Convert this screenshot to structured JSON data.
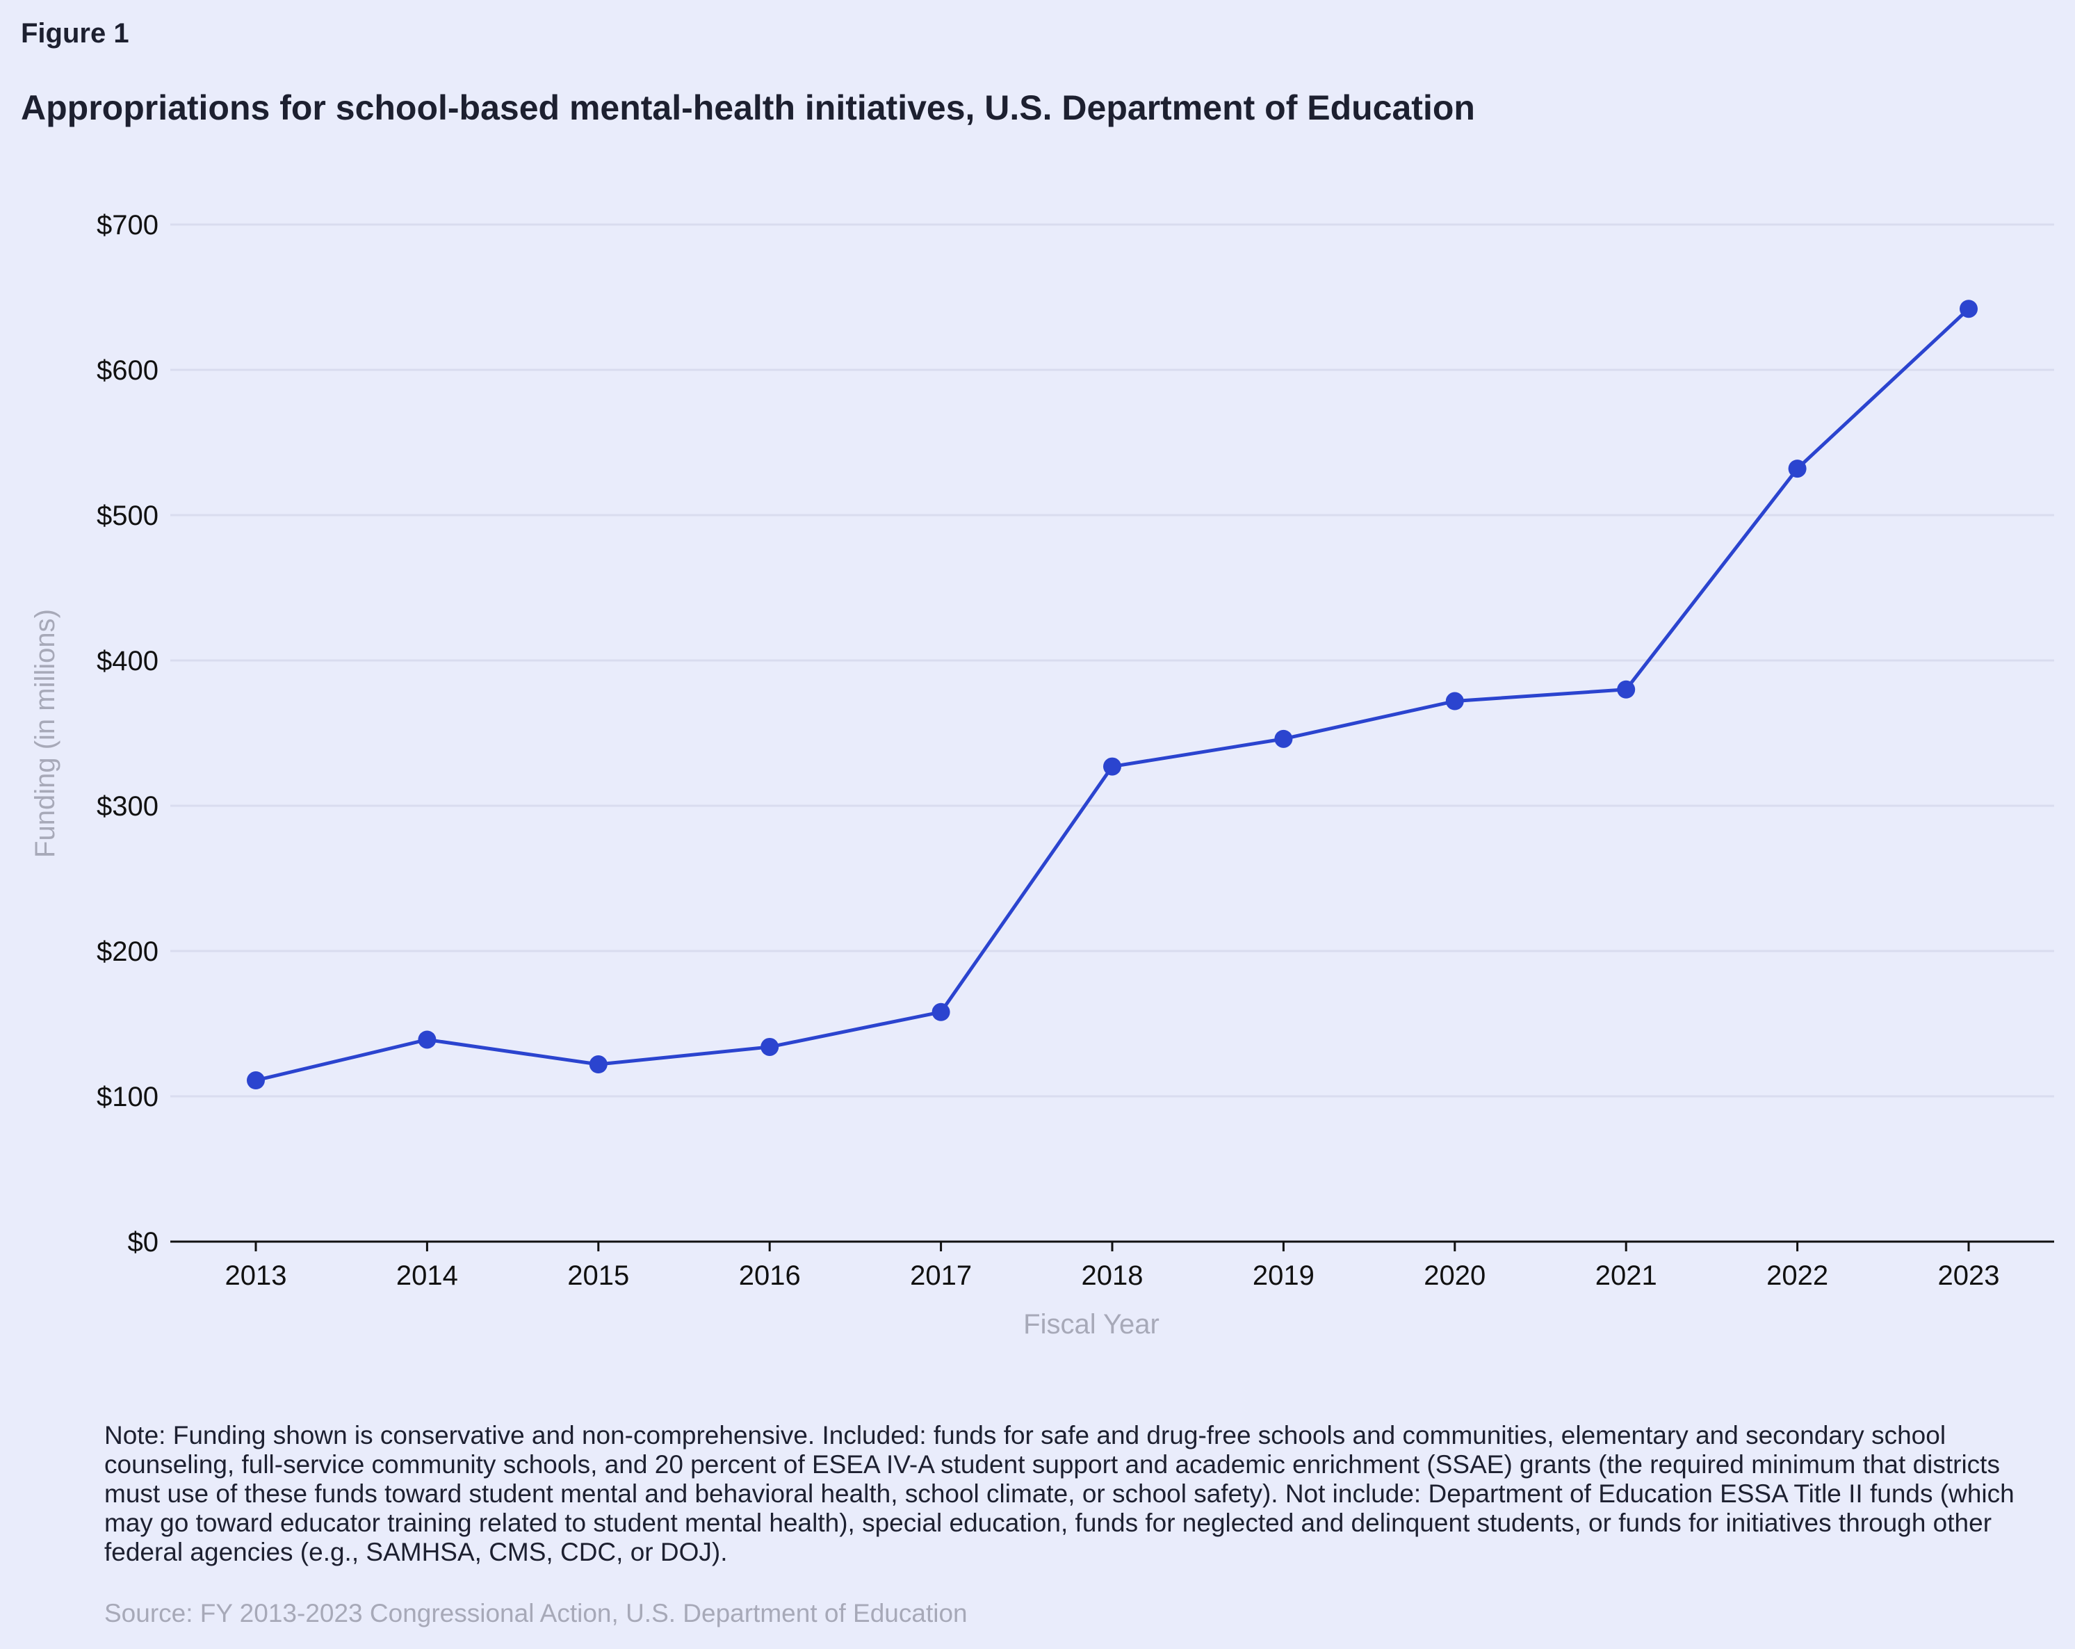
{
  "figure": {
    "label": "Figure 1",
    "title": "Appropriations for school-based mental-health initiatives, U.S. Department of Education",
    "note": "Note: Funding shown is conservative and non-comprehensive. Included: funds for safe and drug-free schools and communities, elementary and secondary school counseling, full-service community schools, and 20 percent of ESEA IV-A student support and academic enrichment (SSAE) grants (the required minimum that districts must use of these funds toward student mental and behavioral health, school climate, or school safety). Not include: Department of Education ESSA Title II funds (which may go toward educator training related to student mental health), special education, funds for neglected and delinquent students, or funds for initiatives through other federal agencies (e.g., SAMHSA, CMS, CDC, or DOJ).",
    "source": "Source: FY 2013-2023 Congressional Action, U.S. Department of Education"
  },
  "chart_data": {
    "type": "line",
    "title": "Appropriations for school-based mental-health initiatives, U.S. Department of Education",
    "xlabel": "Fiscal Year",
    "ylabel": "Funding (in millions)",
    "x": [
      "2013",
      "2014",
      "2015",
      "2016",
      "2017",
      "2018",
      "2019",
      "2020",
      "2021",
      "2022",
      "2023"
    ],
    "series": [
      {
        "values": [
          111,
          139,
          122,
          134,
          158,
          327,
          346,
          372,
          380,
          532,
          642
        ]
      }
    ],
    "ylim": [
      0,
      700
    ],
    "yticks": [
      0,
      100,
      200,
      300,
      400,
      500,
      600,
      700
    ],
    "ytick_labels": [
      "$0",
      "$100",
      "$200",
      "$300",
      "$400",
      "$500",
      "$600",
      "$700"
    ],
    "grid": "horizontal",
    "markers": true,
    "colors": {
      "line": "#2b44cf",
      "marker": "#2b44cf",
      "grid": "#d9dcef",
      "axis": "#111111",
      "background": "#e9ecfb"
    }
  }
}
